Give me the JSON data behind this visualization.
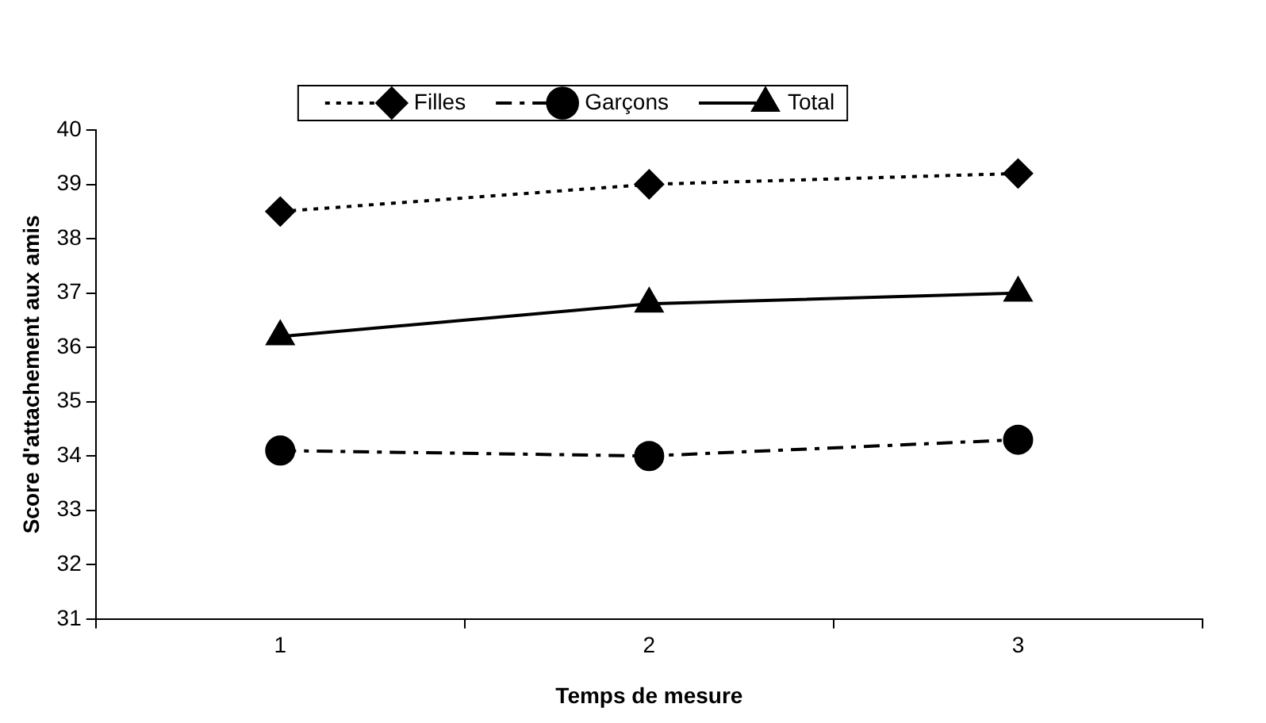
{
  "chart_data": {
    "type": "line",
    "xlabel": "Temps de mesure",
    "ylabel": "Score d'attachement aux amis",
    "categories": [
      "1",
      "2",
      "3"
    ],
    "ylim": [
      31,
      40
    ],
    "yticks": [
      31,
      32,
      33,
      34,
      35,
      36,
      37,
      38,
      39,
      40
    ],
    "grid": false,
    "legend": "top",
    "series": [
      {
        "name": "Filles",
        "color": "#000000",
        "values": [
          38.5,
          39.0,
          39.2
        ],
        "marker": "diamond",
        "line_style": "dotted"
      },
      {
        "name": "Garçons",
        "color": "#000000",
        "values": [
          34.1,
          34.0,
          34.3
        ],
        "marker": "circle",
        "line_style": "dashed"
      },
      {
        "name": "Total",
        "color": "#000000",
        "values": [
          36.2,
          36.8,
          37.0
        ],
        "marker": "triangle",
        "line_style": "solid"
      }
    ]
  }
}
